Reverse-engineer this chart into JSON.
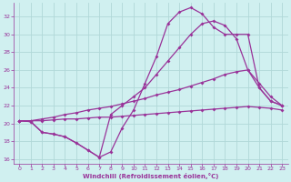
{
  "xlabel": "Windchill (Refroidissement éolien,°C)",
  "xlim": [
    -0.5,
    23.5
  ],
  "ylim": [
    15.5,
    33.5
  ],
  "xticks": [
    0,
    1,
    2,
    3,
    4,
    5,
    6,
    7,
    8,
    9,
    10,
    11,
    12,
    13,
    14,
    15,
    16,
    17,
    18,
    19,
    20,
    21,
    22,
    23
  ],
  "yticks": [
    16,
    18,
    20,
    22,
    24,
    26,
    28,
    30,
    32
  ],
  "bg_color": "#d0f0f0",
  "line_color": "#993399",
  "grid_color": "#b0d8d8",
  "line1_x": [
    0,
    1,
    2,
    3,
    4,
    5,
    6,
    7,
    8,
    9,
    10,
    11,
    12,
    13,
    14,
    15,
    16,
    17,
    18,
    19,
    20,
    21,
    22,
    23
  ],
  "line1_y": [
    20.3,
    20.2,
    19.0,
    18.8,
    18.5,
    17.8,
    17.0,
    16.2,
    16.8,
    19.5,
    21.5,
    24.5,
    27.5,
    31.2,
    32.5,
    33.0,
    32.3,
    30.8,
    30.0,
    30.0,
    30.0,
    24.0,
    22.5,
    22.0
  ],
  "line2_x": [
    0,
    1,
    2,
    3,
    4,
    5,
    6,
    7,
    8,
    9,
    10,
    11,
    12,
    13,
    14,
    15,
    16,
    17,
    18,
    19,
    20,
    21,
    22,
    23
  ],
  "line2_y": [
    20.3,
    20.2,
    19.0,
    18.8,
    18.5,
    17.8,
    17.0,
    16.2,
    21.0,
    22.0,
    23.0,
    24.0,
    25.5,
    27.0,
    28.5,
    30.0,
    31.2,
    31.5,
    31.0,
    29.5,
    26.0,
    24.0,
    22.5,
    22.0
  ],
  "line3_x": [
    0,
    1,
    2,
    3,
    4,
    5,
    6,
    7,
    8,
    9,
    10,
    11,
    12,
    13,
    14,
    15,
    16,
    17,
    18,
    19,
    20,
    21,
    22,
    23
  ],
  "line3_y": [
    20.3,
    20.3,
    20.5,
    20.7,
    21.0,
    21.2,
    21.5,
    21.7,
    21.9,
    22.2,
    22.5,
    22.8,
    23.2,
    23.5,
    23.8,
    24.2,
    24.6,
    25.0,
    25.5,
    25.8,
    26.0,
    24.5,
    23.0,
    22.0
  ],
  "line4_x": [
    0,
    1,
    2,
    3,
    4,
    5,
    6,
    7,
    8,
    9,
    10,
    11,
    12,
    13,
    14,
    15,
    16,
    17,
    18,
    19,
    20,
    21,
    22,
    23
  ],
  "line4_y": [
    20.3,
    20.3,
    20.3,
    20.4,
    20.5,
    20.5,
    20.6,
    20.7,
    20.7,
    20.8,
    20.9,
    21.0,
    21.1,
    21.2,
    21.3,
    21.4,
    21.5,
    21.6,
    21.7,
    21.8,
    21.9,
    21.8,
    21.7,
    21.5
  ]
}
